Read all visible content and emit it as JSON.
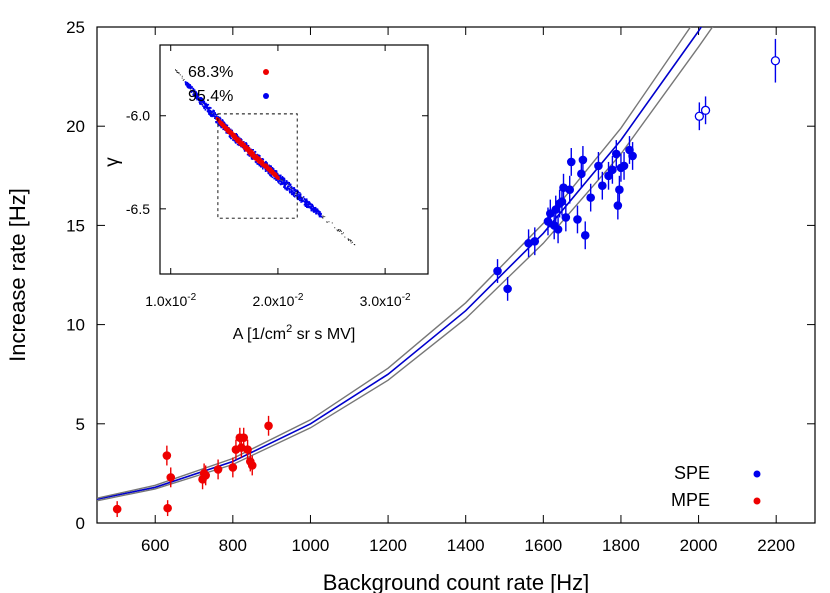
{
  "chart_data": {
    "type": "scatter",
    "title": "",
    "xlabel": "Background count rate [Hz]",
    "ylabel": "Increase rate [Hz]",
    "xlim": [
      450,
      2300
    ],
    "ylim": [
      0,
      25
    ],
    "xticks": [
      600,
      800,
      1000,
      1200,
      1400,
      1600,
      1800,
      2000,
      2200
    ],
    "yticks": [
      0,
      5,
      10,
      15,
      20,
      25
    ],
    "xtick_labels": [
      "600",
      "800",
      "1000",
      "1200",
      "1400",
      "1600",
      "1800",
      "2000",
      "2200"
    ],
    "ytick_labels": [
      "0",
      "5",
      "10",
      "15",
      "20",
      "25"
    ],
    "legend_position": "bottom-right",
    "series": [
      {
        "name": "SPE",
        "color": "#0000ee",
        "marker": "filled-circle",
        "points": [
          {
            "x": 1482,
            "y": 12.7,
            "err": 0.6
          },
          {
            "x": 1508,
            "y": 11.8,
            "err": 0.6
          },
          {
            "x": 1562,
            "y": 14.1,
            "err": 0.7
          },
          {
            "x": 1578,
            "y": 14.2,
            "err": 0.7
          },
          {
            "x": 1612,
            "y": 15.2,
            "err": 0.7
          },
          {
            "x": 1618,
            "y": 15.6,
            "err": 0.7
          },
          {
            "x": 1628,
            "y": 15.0,
            "err": 0.7
          },
          {
            "x": 1632,
            "y": 15.8,
            "err": 0.7
          },
          {
            "x": 1638,
            "y": 14.8,
            "err": 0.7
          },
          {
            "x": 1642,
            "y": 16.1,
            "err": 0.7
          },
          {
            "x": 1648,
            "y": 16.2,
            "err": 0.7
          },
          {
            "x": 1652,
            "y": 16.9,
            "err": 0.7
          },
          {
            "x": 1658,
            "y": 15.4,
            "err": 0.7
          },
          {
            "x": 1668,
            "y": 16.8,
            "err": 0.7
          },
          {
            "x": 1672,
            "y": 18.2,
            "err": 0.7
          },
          {
            "x": 1688,
            "y": 15.3,
            "err": 0.7
          },
          {
            "x": 1698,
            "y": 17.6,
            "err": 0.7
          },
          {
            "x": 1702,
            "y": 18.3,
            "err": 0.7
          },
          {
            "x": 1708,
            "y": 14.5,
            "err": 0.7
          },
          {
            "x": 1722,
            "y": 16.4,
            "err": 0.7
          },
          {
            "x": 1742,
            "y": 18.0,
            "err": 0.7
          },
          {
            "x": 1752,
            "y": 17.0,
            "err": 0.7
          },
          {
            "x": 1768,
            "y": 17.5,
            "err": 0.7
          },
          {
            "x": 1778,
            "y": 17.8,
            "err": 0.7
          },
          {
            "x": 1788,
            "y": 18.6,
            "err": 0.7
          },
          {
            "x": 1792,
            "y": 16.0,
            "err": 0.7
          },
          {
            "x": 1796,
            "y": 16.8,
            "err": 0.7
          },
          {
            "x": 1800,
            "y": 17.9,
            "err": 0.7
          },
          {
            "x": 1808,
            "y": 18.0,
            "err": 0.7
          },
          {
            "x": 1822,
            "y": 18.8,
            "err": 0.7
          },
          {
            "x": 1830,
            "y": 18.5,
            "err": 0.7
          }
        ]
      },
      {
        "name": "MPE",
        "color": "#ee0000",
        "marker": "filled-circle",
        "points": [
          {
            "x": 502,
            "y": 0.7,
            "err": 0.4
          },
          {
            "x": 630,
            "y": 3.4,
            "err": 0.5
          },
          {
            "x": 632,
            "y": 0.75,
            "err": 0.4
          },
          {
            "x": 640,
            "y": 2.3,
            "err": 0.5
          },
          {
            "x": 722,
            "y": 2.2,
            "err": 0.5
          },
          {
            "x": 726,
            "y": 2.5,
            "err": 0.5
          },
          {
            "x": 730,
            "y": 2.4,
            "err": 0.5
          },
          {
            "x": 762,
            "y": 2.7,
            "err": 0.5
          },
          {
            "x": 800,
            "y": 2.8,
            "err": 0.5
          },
          {
            "x": 808,
            "y": 3.7,
            "err": 0.5
          },
          {
            "x": 818,
            "y": 4.3,
            "err": 0.5
          },
          {
            "x": 822,
            "y": 3.8,
            "err": 0.5
          },
          {
            "x": 828,
            "y": 4.3,
            "err": 0.5
          },
          {
            "x": 838,
            "y": 3.7,
            "err": 0.5
          },
          {
            "x": 845,
            "y": 3.1,
            "err": 0.5
          },
          {
            "x": 850,
            "y": 2.9,
            "err": 0.5
          },
          {
            "x": 892,
            "y": 4.9,
            "err": 0.5
          }
        ]
      },
      {
        "name": "",
        "color": "#0000ee",
        "marker": "open-circle",
        "points": [
          {
            "x": 2002,
            "y": 20.5,
            "err": 0.7
          },
          {
            "x": 2018,
            "y": 20.8,
            "err": 0.7
          },
          {
            "x": 2198,
            "y": 23.3,
            "err": 1.1
          }
        ]
      }
    ],
    "fit_curves": [
      {
        "role": "best-fit",
        "color": "#0000cc",
        "x": [
          450,
          600,
          800,
          1000,
          1200,
          1400,
          1600,
          1800,
          2000,
          2050
        ],
        "y": [
          1.2,
          1.8,
          3.1,
          5.0,
          7.5,
          10.7,
          14.6,
          19.3,
          24.8,
          26.3
        ]
      },
      {
        "role": "upper-bound",
        "color": "#777777",
        "x": [
          450,
          600,
          800,
          1000,
          1200,
          1400,
          1600,
          1800,
          2000,
          2050
        ],
        "y": [
          1.25,
          1.9,
          3.25,
          5.2,
          7.8,
          11.1,
          15.1,
          19.9,
          25.6,
          27.1
        ]
      },
      {
        "role": "lower-bound",
        "color": "#777777",
        "x": [
          450,
          600,
          800,
          1000,
          1200,
          1400,
          1600,
          1800,
          2000,
          2050
        ],
        "y": [
          1.12,
          1.72,
          2.95,
          4.8,
          7.2,
          10.3,
          14.1,
          18.6,
          24.0,
          25.4
        ]
      }
    ],
    "inset": {
      "type": "scatter",
      "xlabel_main": "A [1/cm",
      "xlabel_sup": "2",
      "xlabel_tail": " sr s MV]",
      "ylabel": "γ",
      "xlim": [
        0.009,
        0.034
      ],
      "ylim": [
        -5.62,
        -6.85
      ],
      "xticks": [
        0.01,
        0.02,
        0.03
      ],
      "xtick_base": [
        "1.0x10",
        "2.0x10",
        "3.0x10"
      ],
      "xtick_exp": [
        "-2",
        "-2",
        "-2"
      ],
      "yticks": [
        -6.0,
        -6.5
      ],
      "ytick_labels": [
        "-6.0",
        "-6.5"
      ],
      "legend": [
        {
          "label": "68.3%",
          "color": "#ee0000"
        },
        {
          "label": "95.4%",
          "color": "#0000ee"
        }
      ],
      "box_x": [
        0.0144,
        0.0218
      ],
      "box_y": [
        -5.99,
        -6.55
      ],
      "band_center": {
        "x": [
          0.01,
          0.0125,
          0.015,
          0.0175,
          0.02,
          0.0225,
          0.025,
          0.0275
        ],
        "y": [
          -5.72,
          -5.9,
          -6.06,
          -6.2,
          -6.33,
          -6.46,
          -6.58,
          -6.71
        ]
      },
      "region_95": {
        "x": [
          0.0113,
          0.024
        ],
        "half_width": 0.028
      },
      "region_68": {
        "x": [
          0.0142,
          0.02
        ],
        "half_width": 0.016
      },
      "tails": {
        "x": [
          0.0103,
          0.0272
        ],
        "half_width": 0.015
      }
    }
  }
}
